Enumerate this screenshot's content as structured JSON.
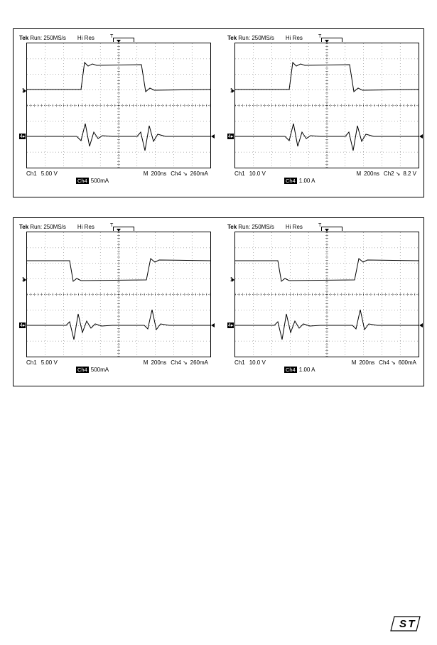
{
  "figures": [
    {
      "scopes": [
        {
          "header": {
            "tek": "Tek",
            "run": "Run: 250MS/s",
            "hires": "Hi Res",
            "tlabel": "T"
          },
          "markers": {
            "m1": "1",
            "m4": "4"
          },
          "footer": {
            "ch1": "Ch1",
            "ch1v": "5.00 V",
            "m": "M",
            "mt": "200ns",
            "chx": "Ch4",
            "trig_edge": "↘",
            "chxv": "260mA"
          },
          "footer2": {
            "box": "Ch4",
            "val": "500mA"
          },
          "waveforms": {
            "upper_type": "pulse_high",
            "upper_baseline": 65,
            "upper_high": 30,
            "upper_t1": 78,
            "upper_t2": 165,
            "lower_baseline": 131
          }
        },
        {
          "header": {
            "tek": "Tek",
            "run": "Run: 250MS/s",
            "hires": "Hi Res",
            "tlabel": "T"
          },
          "markers": {
            "m1": "1",
            "m4": "4"
          },
          "footer": {
            "ch1": "Ch1",
            "ch1v": "10.0 V",
            "m": "M",
            "mt": "200ns",
            "chx": "Ch2",
            "trig_edge": "↘",
            "chxv": "8.2 V"
          },
          "footer2": {
            "box": "Ch4",
            "val": "1.00 A"
          },
          "waveforms": {
            "upper_type": "pulse_high",
            "upper_baseline": 65,
            "upper_high": 30,
            "upper_t1": 78,
            "upper_t2": 165,
            "lower_baseline": 131
          }
        }
      ]
    },
    {
      "scopes": [
        {
          "header": {
            "tek": "Tek",
            "run": "Run: 250MS/s",
            "hires": "Hi Res",
            "tlabel": "T"
          },
          "markers": {
            "m1": "1",
            "m4": "4"
          },
          "footer": {
            "ch1": "Ch1",
            "ch1v": "5.00 V",
            "m": "M",
            "mt": "200ns",
            "chx": "Ch4",
            "trig_edge": "↘",
            "chxv": "260mA"
          },
          "footer2": {
            "box": "Ch4",
            "val": "500mA"
          },
          "waveforms": {
            "upper_type": "pulse_low",
            "upper_baseline": 40,
            "upper_low": 67,
            "upper_t1": 62,
            "upper_t2": 172,
            "lower_baseline": 131
          }
        },
        {
          "header": {
            "tek": "Tek",
            "run": "Run: 250MS/s",
            "hires": "Hi Res",
            "tlabel": "T"
          },
          "markers": {
            "m1": "1",
            "m4": "4"
          },
          "footer": {
            "ch1": "Ch1",
            "ch1v": "10.0 V",
            "m": "M",
            "mt": "200ns",
            "chx": "Ch4",
            "trig_edge": "↘",
            "chxv": "600mA"
          },
          "footer2": {
            "box": "Ch4",
            "val": "1.00 A"
          },
          "waveforms": {
            "upper_type": "pulse_low",
            "upper_baseline": 40,
            "upper_low": 67,
            "upper_t1": 62,
            "upper_t2": 172,
            "lower_baseline": 131
          }
        }
      ]
    }
  ],
  "colors": {
    "bg": "#ffffff",
    "line": "#000000"
  }
}
